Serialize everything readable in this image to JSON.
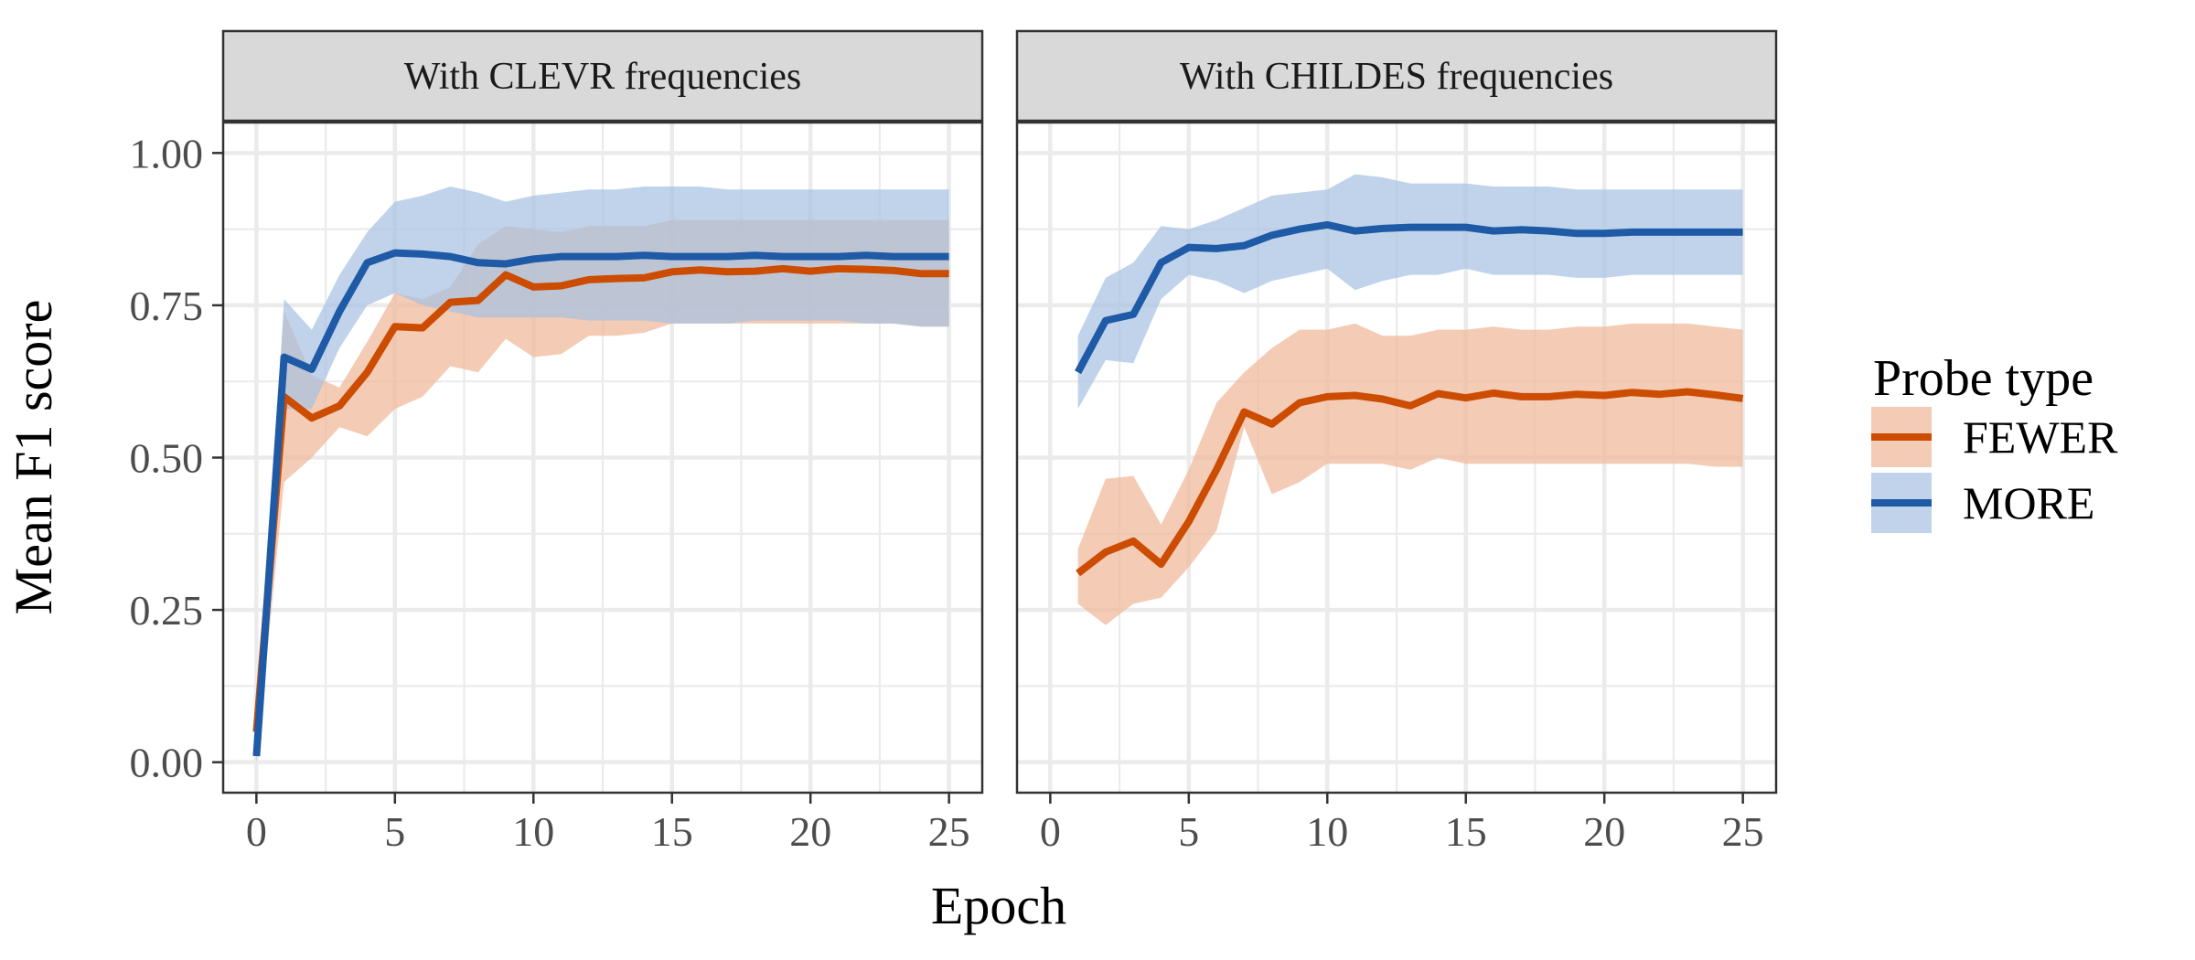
{
  "chart_data": {
    "type": "line",
    "xlabel": "Epoch",
    "ylabel": "Mean F1 score",
    "xlim": [
      -1.2,
      26.2
    ],
    "ylim": [
      -0.05,
      1.05
    ],
    "x_ticks": [
      0,
      5,
      10,
      15,
      20,
      25
    ],
    "x_tick_labels": [
      "0",
      "5",
      "10",
      "15",
      "20",
      "25"
    ],
    "y_ticks": [
      0,
      0.25,
      0.5,
      0.75,
      1.0
    ],
    "y_tick_labels": [
      "0.00",
      "0.25",
      "0.50",
      "0.75",
      "1.00"
    ],
    "grid": true,
    "legend": {
      "title": "Probe type",
      "position": "right",
      "entries": [
        "FEWER",
        "MORE"
      ]
    },
    "colors": {
      "FEWER": {
        "line": "#cc4c02",
        "ribbon": "#f0b799"
      },
      "MORE": {
        "line": "#1f5aa6",
        "ribbon": "#a8c2e2"
      }
    },
    "panels": [
      {
        "strip": "With CLEVR frequencies",
        "series": [
          {
            "name": "FEWER",
            "x": [
              0,
              1,
              2,
              3,
              4,
              5,
              6,
              7,
              8,
              9,
              10,
              11,
              12,
              13,
              14,
              15,
              16,
              17,
              18,
              19,
              20,
              21,
              22,
              23,
              24,
              25
            ],
            "y": [
              0.05,
              0.6,
              0.565,
              0.585,
              0.64,
              0.715,
              0.713,
              0.755,
              0.758,
              0.8,
              0.78,
              0.782,
              0.792,
              0.794,
              0.795,
              0.805,
              0.808,
              0.805,
              0.806,
              0.81,
              0.806,
              0.81,
              0.809,
              0.807,
              0.802,
              0.802
            ],
            "lower": [
              0.0,
              0.46,
              0.5,
              0.55,
              0.535,
              0.58,
              0.6,
              0.65,
              0.64,
              0.695,
              0.665,
              0.67,
              0.7,
              0.7,
              0.705,
              0.72,
              0.72,
              0.72,
              0.72,
              0.72,
              0.72,
              0.72,
              0.72,
              0.72,
              0.715,
              0.715
            ],
            "upper": [
              0.1,
              0.74,
              0.635,
              0.615,
              0.69,
              0.77,
              0.76,
              0.78,
              0.85,
              0.88,
              0.875,
              0.87,
              0.88,
              0.88,
              0.88,
              0.89,
              0.89,
              0.89,
              0.89,
              0.89,
              0.89,
              0.89,
              0.89,
              0.89,
              0.89,
              0.89
            ]
          },
          {
            "name": "MORE",
            "x": [
              0,
              1,
              2,
              3,
              4,
              5,
              6,
              7,
              8,
              9,
              10,
              11,
              12,
              13,
              14,
              15,
              16,
              17,
              18,
              19,
              20,
              21,
              22,
              23,
              24,
              25
            ],
            "y": [
              0.01,
              0.665,
              0.645,
              0.74,
              0.82,
              0.836,
              0.834,
              0.83,
              0.82,
              0.818,
              0.826,
              0.83,
              0.83,
              0.83,
              0.832,
              0.83,
              0.83,
              0.83,
              0.832,
              0.83,
              0.83,
              0.83,
              0.832,
              0.83,
              0.83,
              0.83
            ],
            "lower": [
              0.0,
              0.58,
              0.58,
              0.68,
              0.75,
              0.77,
              0.75,
              0.74,
              0.73,
              0.73,
              0.73,
              0.73,
              0.725,
              0.725,
              0.725,
              0.72,
              0.72,
              0.72,
              0.725,
              0.725,
              0.725,
              0.725,
              0.72,
              0.72,
              0.715,
              0.715
            ],
            "upper": [
              0.02,
              0.76,
              0.71,
              0.8,
              0.87,
              0.92,
              0.93,
              0.945,
              0.935,
              0.92,
              0.93,
              0.935,
              0.94,
              0.94,
              0.945,
              0.945,
              0.945,
              0.94,
              0.94,
              0.94,
              0.94,
              0.94,
              0.94,
              0.94,
              0.94,
              0.94
            ]
          }
        ]
      },
      {
        "strip": "With CHILDES frequencies",
        "series": [
          {
            "name": "FEWER",
            "x": [
              1,
              2,
              3,
              4,
              5,
              6,
              7,
              8,
              9,
              10,
              11,
              12,
              13,
              14,
              15,
              16,
              17,
              18,
              19,
              20,
              21,
              22,
              23,
              24,
              25
            ],
            "y": [
              0.31,
              0.345,
              0.363,
              0.325,
              0.395,
              0.48,
              0.575,
              0.555,
              0.59,
              0.6,
              0.602,
              0.596,
              0.585,
              0.605,
              0.598,
              0.606,
              0.6,
              0.6,
              0.604,
              0.602,
              0.607,
              0.604,
              0.608,
              0.603,
              0.597
            ],
            "lower": [
              0.26,
              0.225,
              0.26,
              0.27,
              0.32,
              0.38,
              0.55,
              0.44,
              0.46,
              0.49,
              0.49,
              0.49,
              0.48,
              0.5,
              0.49,
              0.49,
              0.49,
              0.49,
              0.49,
              0.49,
              0.49,
              0.49,
              0.49,
              0.485,
              0.485
            ],
            "upper": [
              0.35,
              0.465,
              0.47,
              0.39,
              0.48,
              0.59,
              0.64,
              0.68,
              0.71,
              0.71,
              0.72,
              0.7,
              0.7,
              0.71,
              0.71,
              0.715,
              0.71,
              0.71,
              0.715,
              0.715,
              0.72,
              0.72,
              0.72,
              0.715,
              0.71
            ]
          },
          {
            "name": "MORE",
            "x": [
              1,
              2,
              3,
              4,
              5,
              6,
              7,
              8,
              9,
              10,
              11,
              12,
              13,
              14,
              15,
              16,
              17,
              18,
              19,
              20,
              21,
              22,
              23,
              24,
              25
            ],
            "y": [
              0.64,
              0.725,
              0.735,
              0.82,
              0.845,
              0.843,
              0.848,
              0.865,
              0.875,
              0.882,
              0.872,
              0.876,
              0.878,
              0.878,
              0.878,
              0.872,
              0.874,
              0.872,
              0.868,
              0.868,
              0.87,
              0.87,
              0.87,
              0.87,
              0.87
            ],
            "lower": [
              0.58,
              0.66,
              0.655,
              0.76,
              0.8,
              0.79,
              0.77,
              0.79,
              0.8,
              0.81,
              0.775,
              0.79,
              0.8,
              0.8,
              0.81,
              0.8,
              0.8,
              0.8,
              0.795,
              0.795,
              0.8,
              0.8,
              0.8,
              0.8,
              0.8
            ],
            "upper": [
              0.7,
              0.795,
              0.82,
              0.88,
              0.875,
              0.89,
              0.91,
              0.93,
              0.935,
              0.94,
              0.965,
              0.96,
              0.95,
              0.95,
              0.95,
              0.945,
              0.945,
              0.945,
              0.94,
              0.94,
              0.94,
              0.94,
              0.94,
              0.94,
              0.94
            ]
          }
        ]
      }
    ]
  }
}
